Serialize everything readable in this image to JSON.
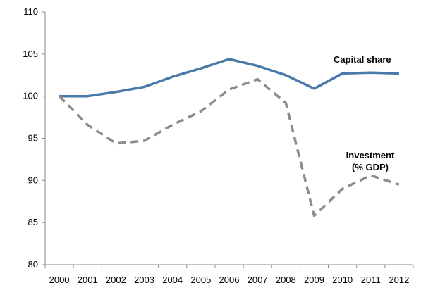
{
  "chart_data": {
    "type": "line",
    "title": "",
    "xlabel": "",
    "ylabel": "",
    "x": [
      "2000",
      "2001",
      "2002",
      "2003",
      "2004",
      "2005",
      "2006",
      "2007",
      "2008",
      "2009",
      "2010",
      "2011",
      "2012"
    ],
    "ylim": [
      80,
      110
    ],
    "yticks": [
      80,
      85,
      90,
      95,
      100,
      105,
      110
    ],
    "grid": false,
    "legend": "inline labels",
    "series": [
      {
        "name": "Capital share",
        "style": "solid",
        "color": "#4a7aaa",
        "values": [
          100,
          100,
          100.5,
          101.1,
          102.3,
          103.3,
          104.4,
          103.6,
          102.5,
          100.9,
          102.7,
          102.8,
          102.7
        ]
      },
      {
        "name": "Investment (% GDP)",
        "name_lines": [
          "Investment",
          "(% GDP)"
        ],
        "style": "dashed",
        "color": "#8c8c8c",
        "values": [
          100,
          96.6,
          94.4,
          94.7,
          96.6,
          98.2,
          100.8,
          102.0,
          99.2,
          85.8,
          89.0,
          90.6,
          89.5
        ]
      }
    ]
  }
}
